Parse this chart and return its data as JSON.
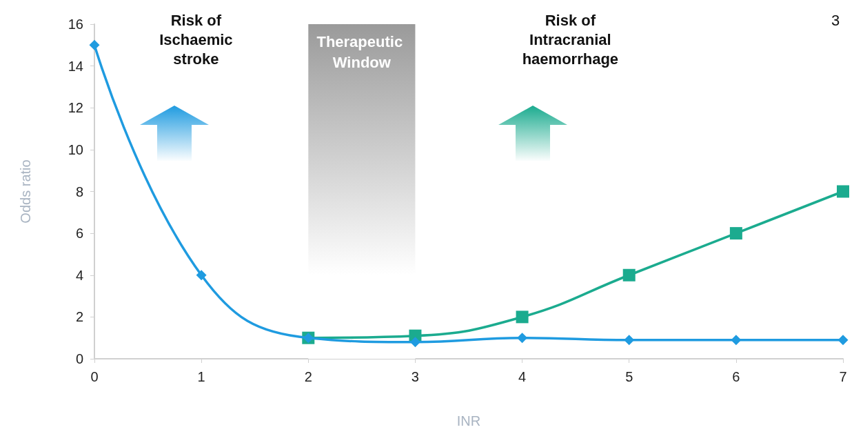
{
  "chart_data": {
    "type": "line",
    "xlabel": "INR",
    "ylabel": "Odds ratio",
    "x": [
      0,
      1,
      2,
      3,
      4,
      5,
      6,
      7
    ],
    "series": [
      {
        "color": "#1f9be0",
        "marker": "diamond",
        "values": [
          15,
          4,
          1,
          0.8,
          1,
          0.9,
          0.9,
          0.9
        ]
      },
      {
        "color": "#1bab8f",
        "marker": "square",
        "x": [
          2,
          3,
          4,
          5,
          6,
          7
        ],
        "values": [
          1,
          1.1,
          2,
          4,
          6,
          8
        ]
      }
    ],
    "xlim": [
      0,
      7
    ],
    "xticks": [
      0,
      1,
      2,
      3,
      4,
      5,
      6,
      7
    ],
    "ylim": [
      0,
      16
    ],
    "yticks": [
      0,
      2,
      4,
      6,
      8,
      10,
      12,
      14,
      16
    ],
    "bands": [
      {
        "axis": "x",
        "from": 2,
        "to": 3,
        "label": "Therapeutic Window",
        "color": "#9a9a9a"
      }
    ],
    "annotations": [
      "Risk of Ischaemic stroke",
      "Risk of Intracranial haemorrhage",
      "3"
    ],
    "grid": false
  }
}
